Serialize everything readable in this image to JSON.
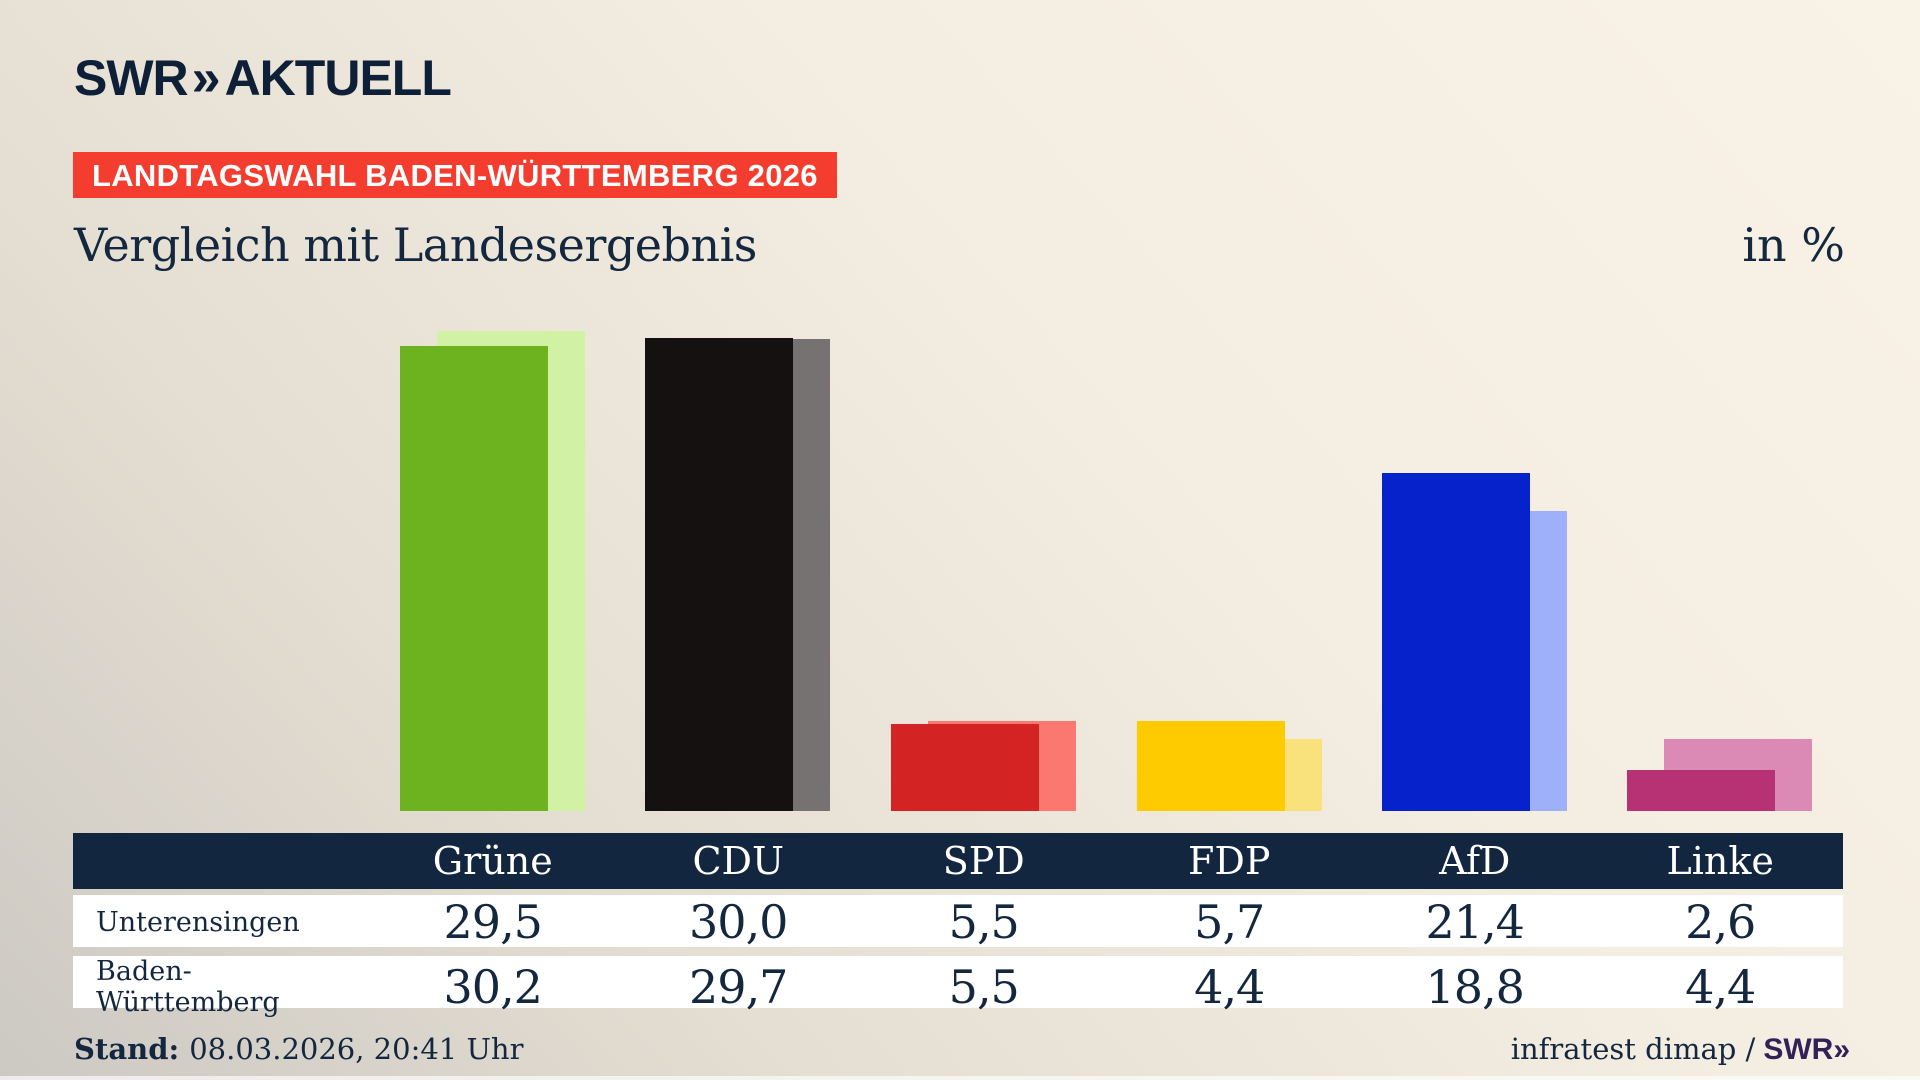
{
  "brand": {
    "logo_swr": "SWR",
    "logo_chevrons": "»",
    "logo_aktuell": "AKTUELL"
  },
  "badge": {
    "text": "LANDTAGSWAHL BADEN-WÜRTTEMBERG 2026",
    "bg_color": "#f53d2f",
    "text_color": "#ffffff"
  },
  "title": "Vergleich mit Landesergebnis",
  "unit_label": "in %",
  "chart_data": {
    "type": "bar",
    "title": "Vergleich mit Landesergebnis",
    "ylabel": "in %",
    "ylim": [
      0,
      32
    ],
    "grid": false,
    "legend_position": "table-rows",
    "categories": [
      "Grüne",
      "CDU",
      "SPD",
      "FDP",
      "AfD",
      "Linke"
    ],
    "series": [
      {
        "name": "Unterensingen",
        "values": [
          29.5,
          30.0,
          5.5,
          5.7,
          21.4,
          2.6
        ]
      },
      {
        "name": "Baden-Württemberg",
        "values": [
          30.2,
          29.7,
          5.5,
          4.4,
          18.8,
          4.4
        ]
      }
    ],
    "colors": [
      {
        "party": "Grüne",
        "slug": "gruene",
        "fg": "#6db31f",
        "bg": "#d1f1a5"
      },
      {
        "party": "CDU",
        "slug": "cdu",
        "fg": "#141110",
        "bg": "#767271"
      },
      {
        "party": "SPD",
        "slug": "spd",
        "fg": "#d32322",
        "bg": "#fa786f"
      },
      {
        "party": "FDP",
        "slug": "fdp",
        "fg": "#fecb00",
        "bg": "#f9e27b"
      },
      {
        "party": "AfD",
        "slug": "afd",
        "fg": "#0522cb",
        "bg": "#9fb0fa"
      },
      {
        "party": "Linke",
        "slug": "linke",
        "fg": "#b73175",
        "bg": "#db89b5"
      }
    ]
  },
  "table": {
    "columns": [
      "Grüne",
      "CDU",
      "SPD",
      "FDP",
      "AfD",
      "Linke"
    ],
    "header_bg": "#12263f",
    "rows": [
      {
        "label": "Unterensingen",
        "values": [
          "29,5",
          "30,0",
          "5,5",
          "5,7",
          "21,4",
          "2,6"
        ]
      },
      {
        "label": "Baden-Württemberg",
        "values": [
          "30,2",
          "29,7",
          "5,5",
          "4,4",
          "18,8",
          "4,4"
        ]
      }
    ]
  },
  "footer": {
    "stand_label": "Stand:",
    "stand_value": "08.03.2026, 20:41 Uhr",
    "source_text": "infratest dimap /",
    "source_brand": "SWR",
    "source_brand_chevrons": "»"
  }
}
